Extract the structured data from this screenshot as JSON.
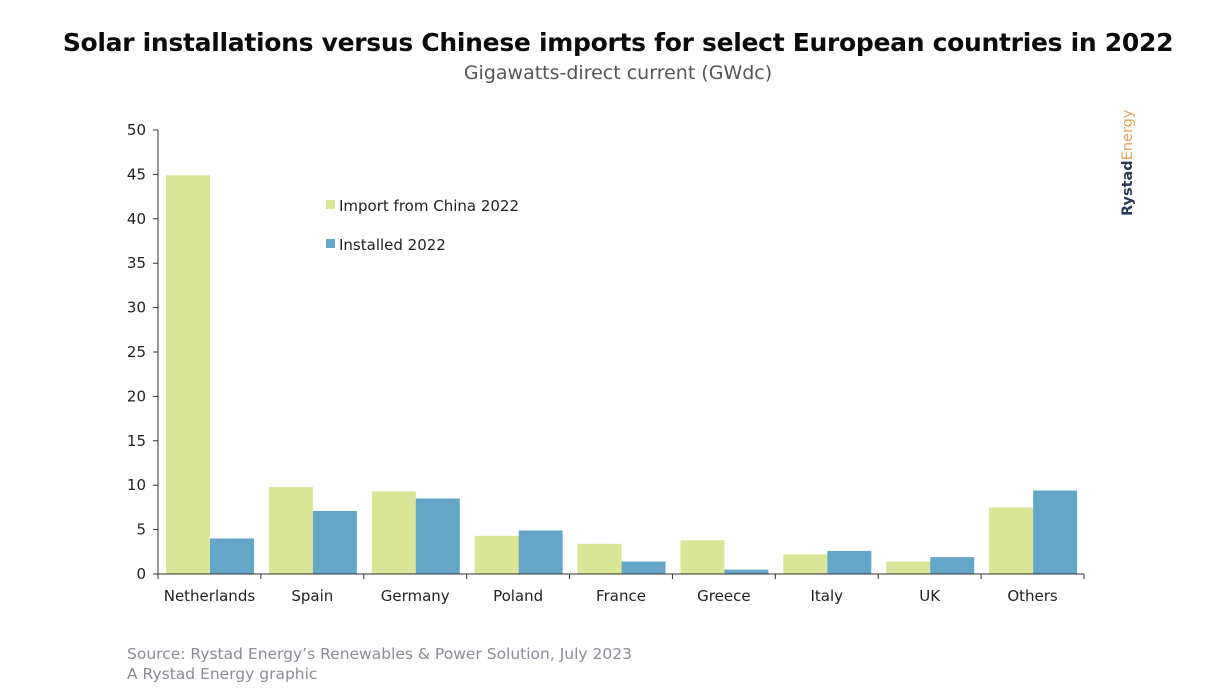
{
  "title": "Solar installations versus Chinese imports for select European countries in 2022",
  "subtitle": "Gigawatts-direct current (GWdc)",
  "source": "Source: Rystad Energy’s Renewables & Power Solution, July 2023",
  "credit": "A Rystad Energy graphic",
  "brand": {
    "part1": "Rystad",
    "part2": "Energy"
  },
  "colors": {
    "import": "#d9e597",
    "installed": "#64a6c8",
    "axis": "#333333"
  },
  "chart_data": {
    "type": "bar",
    "categories": [
      "Netherlands",
      "Spain",
      "Germany",
      "Poland",
      "France",
      "Greece",
      "Italy",
      "UK",
      "Others"
    ],
    "series": [
      {
        "name": "Import from China 2022",
        "values": [
          44.9,
          9.8,
          9.3,
          4.3,
          3.4,
          3.8,
          2.2,
          1.4,
          7.5
        ]
      },
      {
        "name": "Installed 2022",
        "values": [
          4.0,
          7.1,
          8.5,
          4.9,
          1.4,
          0.5,
          2.6,
          1.9,
          9.4
        ]
      }
    ],
    "yticks": [
      0,
      5,
      10,
      15,
      20,
      25,
      30,
      35,
      40,
      45,
      50
    ],
    "ylim": [
      0,
      50
    ],
    "legend": "top-center",
    "grid": false
  }
}
